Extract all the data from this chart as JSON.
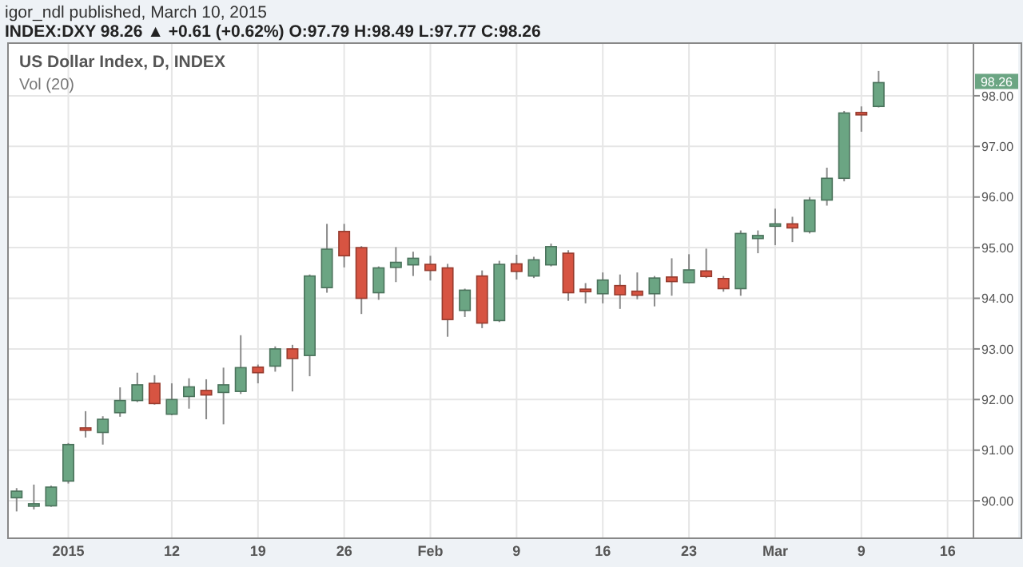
{
  "chart_data": {
    "type": "candlestick",
    "title": "US Dollar Index, D, INDEX",
    "subtitle": "INDEX:DXY 98.26 ▲ +0.61 (+0.62%) O:97.79 H:98.49 L:97.77 C:98.26",
    "annotations": [
      "igor_ndl published, March 10, 2015",
      "Vol (20)",
      {
        "text": "98.26",
        "y": 98.26
      }
    ],
    "categories": [
      null,
      null,
      null,
      "2015",
      null,
      null,
      null,
      null,
      null,
      "12",
      null,
      null,
      null,
      null,
      "19",
      null,
      null,
      null,
      null,
      "26",
      null,
      null,
      null,
      null,
      "Feb",
      null,
      null,
      null,
      null,
      "9",
      null,
      null,
      null,
      null,
      "16",
      null,
      null,
      null,
      null,
      "23",
      null,
      null,
      null,
      null,
      "Mar",
      null,
      null,
      null,
      null,
      "9",
      null,
      null,
      null,
      null,
      "16",
      null
    ],
    "ohlc": [
      [
        90.06,
        90.25,
        89.79,
        90.19
      ],
      [
        89.9,
        90.32,
        89.83,
        89.94
      ],
      [
        89.9,
        90.3,
        89.88,
        90.27
      ],
      [
        90.39,
        91.14,
        90.34,
        91.11
      ],
      [
        91.44,
        91.77,
        91.25,
        91.4
      ],
      [
        91.35,
        91.67,
        91.11,
        91.61
      ],
      [
        91.74,
        92.24,
        91.66,
        91.98
      ],
      [
        91.98,
        92.53,
        91.95,
        92.29
      ],
      [
        92.32,
        92.48,
        91.9,
        91.92
      ],
      [
        91.71,
        92.32,
        91.69,
        92.0
      ],
      [
        92.06,
        92.42,
        91.82,
        92.25
      ],
      [
        92.18,
        92.4,
        91.61,
        92.09
      ],
      [
        92.14,
        92.63,
        91.51,
        92.29
      ],
      [
        92.16,
        93.27,
        92.11,
        92.63
      ],
      [
        92.64,
        92.69,
        92.32,
        92.53
      ],
      [
        92.66,
        93.05,
        92.55,
        93.0
      ],
      [
        93.0,
        93.08,
        92.16,
        92.81
      ],
      [
        92.87,
        94.47,
        92.46,
        94.44
      ],
      [
        94.21,
        95.47,
        94.11,
        94.97
      ],
      [
        95.32,
        95.47,
        94.61,
        94.84
      ],
      [
        95.0,
        95.03,
        93.69,
        94.0
      ],
      [
        94.11,
        94.63,
        93.97,
        94.6
      ],
      [
        94.61,
        95.01,
        94.32,
        94.71
      ],
      [
        94.66,
        94.92,
        94.44,
        94.79
      ],
      [
        94.67,
        94.84,
        94.35,
        94.55
      ],
      [
        94.6,
        94.68,
        93.24,
        93.58
      ],
      [
        93.76,
        94.19,
        93.63,
        94.16
      ],
      [
        94.44,
        94.55,
        93.41,
        93.51
      ],
      [
        93.56,
        94.74,
        93.53,
        94.67
      ],
      [
        94.68,
        94.86,
        94.37,
        94.53
      ],
      [
        94.44,
        94.82,
        94.4,
        94.76
      ],
      [
        94.66,
        95.08,
        94.63,
        95.02
      ],
      [
        94.89,
        94.95,
        93.95,
        94.11
      ],
      [
        94.18,
        94.3,
        93.9,
        94.13
      ],
      [
        94.09,
        94.51,
        93.9,
        94.36
      ],
      [
        94.25,
        94.47,
        93.79,
        94.07
      ],
      [
        94.14,
        94.51,
        93.98,
        94.06
      ],
      [
        94.09,
        94.44,
        93.84,
        94.4
      ],
      [
        94.42,
        94.79,
        94.05,
        94.33
      ],
      [
        94.31,
        94.87,
        94.3,
        94.56
      ],
      [
        94.54,
        94.98,
        94.4,
        94.43
      ],
      [
        94.39,
        94.44,
        94.13,
        94.19
      ],
      [
        94.19,
        95.34,
        94.05,
        95.28
      ],
      [
        95.18,
        95.34,
        94.89,
        95.24
      ],
      [
        95.44,
        95.77,
        95.05,
        95.47
      ],
      [
        95.47,
        95.61,
        95.11,
        95.39
      ],
      [
        95.32,
        96.0,
        95.28,
        95.94
      ],
      [
        95.94,
        96.58,
        95.83,
        96.37
      ],
      [
        96.37,
        97.7,
        96.31,
        97.66
      ],
      [
        97.67,
        97.79,
        97.29,
        97.63
      ],
      [
        97.79,
        98.49,
        97.77,
        98.26
      ],
      null,
      null,
      null,
      null,
      null
    ],
    "colors": [
      "#6ba583",
      "#6ba583",
      "#6ba583",
      "#6ba583",
      "#d75442",
      "#6ba583",
      "#6ba583",
      "#6ba583",
      "#d75442",
      "#6ba583",
      "#6ba583",
      "#d75442",
      "#6ba583",
      "#6ba583",
      "#d75442",
      "#6ba583",
      "#d75442",
      "#6ba583",
      "#6ba583",
      "#d75442",
      "#d75442",
      "#6ba583",
      "#6ba583",
      "#6ba583",
      "#d75442",
      "#d75442",
      "#6ba583",
      "#d75442",
      "#6ba583",
      "#d75442",
      "#6ba583",
      "#6ba583",
      "#d75442",
      "#d75442",
      "#6ba583",
      "#d75442",
      "#d75442",
      "#6ba583",
      "#d75442",
      "#6ba583",
      "#d75442",
      "#d75442",
      "#6ba583",
      "#6ba583",
      "#6ba583",
      "#d75442",
      "#6ba583",
      "#6ba583",
      "#6ba583",
      "#d75442",
      "#6ba583",
      null,
      null,
      null,
      null,
      null
    ],
    "ylim": [
      89.26,
      99.04
    ],
    "yticks": [
      {
        "value": 90,
        "label": "90.00"
      },
      {
        "value": 91,
        "label": "91.00"
      },
      {
        "value": 92,
        "label": "92.00"
      },
      {
        "value": 93,
        "label": "93.00"
      },
      {
        "value": 94,
        "label": "94.00"
      },
      {
        "value": 95,
        "label": "95.00"
      },
      {
        "value": 96,
        "label": "96.00"
      },
      {
        "value": 97,
        "label": "97.00"
      },
      {
        "value": 98,
        "label": "98.00"
      }
    ],
    "grid": true
  }
}
